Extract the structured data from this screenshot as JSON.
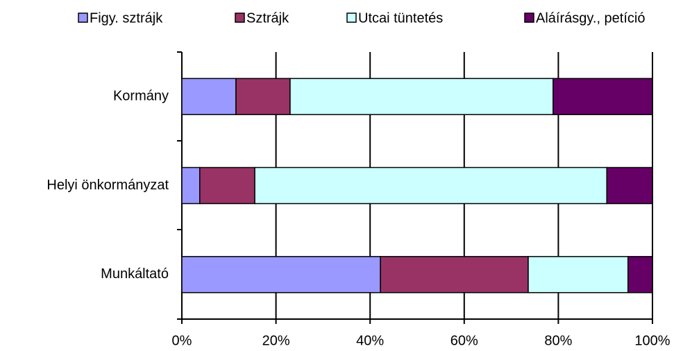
{
  "chart_data": {
    "type": "bar",
    "orientation": "horizontal",
    "stacked": true,
    "categories": [
      "Kormány",
      "Helyi önkormányzat",
      "Munkáltató"
    ],
    "series": [
      {
        "name": "Figy. sztrájk",
        "color": "#9999ff",
        "values": [
          11.5,
          3.8,
          42.2
        ]
      },
      {
        "name": "Sztrájk",
        "color": "#993366",
        "values": [
          11.5,
          11.7,
          31.4
        ]
      },
      {
        "name": "Utcai tüntetés",
        "color": "#ccffff",
        "values": [
          55.9,
          74.8,
          21.2
        ]
      },
      {
        "name": "Aláírásgy., petíció",
        "color": "#660066",
        "values": [
          21.1,
          9.7,
          5.2
        ]
      }
    ],
    "xlim": [
      0,
      100
    ],
    "xticks": [
      {
        "value": 0,
        "label": "0%"
      },
      {
        "value": 20,
        "label": "20%"
      },
      {
        "value": 40,
        "label": "40%"
      },
      {
        "value": 60,
        "label": "60%"
      },
      {
        "value": 80,
        "label": "80%"
      },
      {
        "value": 100,
        "label": "100%"
      }
    ],
    "grid": true,
    "legend": "top"
  }
}
